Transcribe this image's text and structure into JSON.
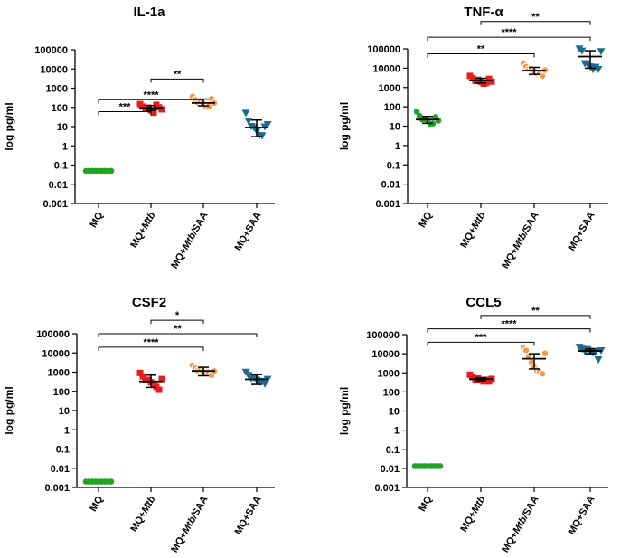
{
  "colors": {
    "MQ": "#23a323",
    "Mtb": "#e81c1c",
    "MtbSAA": "#f79646",
    "SAA": "#1e6a8e",
    "axis": "#000000"
  },
  "chart_data": [
    {
      "type": "scatter",
      "title": "IL-1a",
      "ylabel": "log pg/ml",
      "yscale": "log",
      "ylim": [
        0.001,
        100000
      ],
      "yticks": [
        "0.001",
        "0.01",
        "0.1",
        "1",
        "10",
        "100",
        "1000",
        "10000",
        "100000"
      ],
      "categories": [
        {
          "id": "MQ",
          "pre": "MQ",
          "ital": "",
          "post": ""
        },
        {
          "id": "Mtb",
          "pre": "MQ+",
          "ital": "Mtb",
          "post": ""
        },
        {
          "id": "MtbSAA",
          "pre": "MQ+",
          "ital": "Mtb/",
          "post": "SAA"
        },
        {
          "id": "SAA",
          "pre": "MQ+SAA",
          "ital": "",
          "post": ""
        }
      ],
      "groups": [
        {
          "category": "MQ",
          "marker": "circle",
          "values": [
            0.05,
            0.05,
            0.05,
            0.05,
            0.05,
            0.05,
            0.05,
            0.05,
            0.05
          ],
          "mean": 0.05,
          "low": 0.05,
          "high": 0.05
        },
        {
          "category": "Mtb",
          "marker": "square",
          "values": [
            130,
            110,
            95,
            85,
            70,
            60,
            120,
            100,
            90
          ],
          "mean": 95,
          "low": 70,
          "high": 125
        },
        {
          "category": "MtbSAA",
          "marker": "circle-open",
          "values": [
            320,
            250,
            200,
            170,
            150,
            120,
            100,
            280,
            190
          ],
          "mean": 170,
          "low": 120,
          "high": 270
        },
        {
          "category": "SAA",
          "marker": "triangle-down",
          "values": [
            45,
            20,
            12,
            8,
            6,
            4,
            3,
            10,
            15
          ],
          "mean": 9,
          "low": 3,
          "high": 22
        }
      ],
      "comparisons": [
        {
          "from": "Mtb",
          "to": "MtbSAA",
          "label": "**",
          "y_value": 3000
        },
        {
          "from": "MQ",
          "to": "MtbSAA",
          "label": "****",
          "y_value": 250
        },
        {
          "from": "MQ",
          "to": "Mtb",
          "label": "***",
          "y_value": 60
        }
      ]
    },
    {
      "type": "scatter",
      "title": "TNF-α",
      "ylabel": "log pg/ml",
      "yscale": "log",
      "ylim": [
        0.001,
        100000
      ],
      "yticks": [
        "0.001",
        "0.01",
        "0.1",
        "1",
        "10",
        "100",
        "1000",
        "10000",
        "100000"
      ],
      "categories": [
        {
          "id": "MQ",
          "pre": "MQ",
          "ital": "",
          "post": ""
        },
        {
          "id": "Mtb",
          "pre": "MQ+",
          "ital": "Mtb",
          "post": ""
        },
        {
          "id": "MtbSAA",
          "pre": "MQ+",
          "ital": "Mtb/",
          "post": "SAA"
        },
        {
          "id": "SAA",
          "pre": "MQ+SAA",
          "ital": "",
          "post": ""
        }
      ],
      "groups": [
        {
          "category": "MQ",
          "marker": "circle",
          "values": [
            50,
            35,
            25,
            20,
            18,
            15,
            12,
            30,
            22
          ],
          "mean": 22,
          "low": 14,
          "high": 32
        },
        {
          "category": "Mtb",
          "marker": "square",
          "values": [
            3500,
            3000,
            2500,
            2200,
            2000,
            1800,
            1500,
            2800,
            2300
          ],
          "mean": 2300,
          "low": 1700,
          "high": 3000
        },
        {
          "category": "MtbSAA",
          "marker": "circle-open",
          "values": [
            15000,
            12000,
            10000,
            8000,
            7000,
            6000,
            5000,
            4000,
            9000
          ],
          "mean": 7500,
          "low": 4800,
          "high": 11000
        },
        {
          "category": "SAA",
          "marker": "triangle-down",
          "values": [
            90000,
            80000,
            20000,
            15000,
            12000,
            10000,
            10000,
            9000,
            85000
          ],
          "mean": 40000,
          "low": 10000,
          "high": 80000
        }
      ],
      "comparisons": [
        {
          "from": "Mtb",
          "to": "SAA",
          "label": "**",
          "y_value": 2600000
        },
        {
          "from": "MQ",
          "to": "SAA",
          "label": "****",
          "y_value": 400000
        },
        {
          "from": "MQ",
          "to": "MtbSAA",
          "label": "**",
          "y_value": 55000
        }
      ]
    },
    {
      "type": "scatter",
      "title": "CSF2",
      "ylabel": "log pg/ml",
      "yscale": "log",
      "ylim": [
        0.001,
        100000
      ],
      "yticks": [
        "0.001",
        "0.01",
        "0.1",
        "1",
        "10",
        "100",
        "1000",
        "10000",
        "100000"
      ],
      "categories": [
        {
          "id": "MQ",
          "pre": "MQ",
          "ital": "",
          "post": ""
        },
        {
          "id": "Mtb",
          "pre": "MQ+",
          "ital": "Mtb",
          "post": ""
        },
        {
          "id": "MtbSAA",
          "pre": "MQ+",
          "ital": "Mtb/",
          "post": "SAA"
        },
        {
          "id": "SAA",
          "pre": "MQ+SAA",
          "ital": "",
          "post": ""
        }
      ],
      "groups": [
        {
          "category": "MQ",
          "marker": "circle",
          "values": [
            0.002,
            0.002,
            0.002,
            0.002,
            0.002,
            0.002,
            0.002,
            0.002,
            0.002
          ],
          "mean": 0.002,
          "low": 0.002,
          "high": 0.002
        },
        {
          "category": "Mtb",
          "marker": "square",
          "values": [
            800,
            600,
            450,
            350,
            300,
            250,
            150,
            120,
            500
          ],
          "mean": 330,
          "low": 160,
          "high": 700
        },
        {
          "category": "MtbSAA",
          "marker": "circle-open",
          "values": [
            2000,
            1600,
            1400,
            1200,
            1100,
            1000,
            800,
            700,
            1300
          ],
          "mean": 1150,
          "low": 650,
          "high": 1800
        },
        {
          "category": "SAA",
          "marker": "triangle-down",
          "values": [
            900,
            700,
            550,
            450,
            400,
            350,
            300,
            250,
            500
          ],
          "mean": 420,
          "low": 230,
          "high": 750
        }
      ],
      "comparisons": [
        {
          "from": "Mtb",
          "to": "MtbSAA",
          "label": "*",
          "y_value": 500000
        },
        {
          "from": "MQ",
          "to": "SAA",
          "label": "**",
          "y_value": 100000
        },
        {
          "from": "MQ",
          "to": "MtbSAA",
          "label": "****",
          "y_value": 20000
        }
      ]
    },
    {
      "type": "scatter",
      "title": "CCL5",
      "ylabel": "log pg/ml",
      "yscale": "log",
      "ylim": [
        0.001,
        100000
      ],
      "yticks": [
        "0.001",
        "0.01",
        "0.1",
        "1",
        "10",
        "100",
        "1000",
        "10000",
        "100000"
      ],
      "categories": [
        {
          "id": "MQ",
          "pre": "MQ",
          "ital": "",
          "post": ""
        },
        {
          "id": "Mtb",
          "pre": "MQ+",
          "ital": "Mtb",
          "post": ""
        },
        {
          "id": "MtbSAA",
          "pre": "MQ+",
          "ital": "Mtb/",
          "post": "SAA"
        },
        {
          "id": "SAA",
          "pre": "MQ+SAA",
          "ital": "",
          "post": ""
        }
      ],
      "groups": [
        {
          "category": "MQ",
          "marker": "circle",
          "values": [
            0.013,
            0.013,
            0.013,
            0.013,
            0.013,
            0.013,
            0.013,
            0.013,
            0.013
          ],
          "mean": 0.013,
          "low": 0.013,
          "high": 0.013
        },
        {
          "category": "Mtb",
          "marker": "square",
          "values": [
            700,
            600,
            500,
            450,
            420,
            400,
            380,
            350,
            550
          ],
          "mean": 470,
          "low": 380,
          "high": 560
        },
        {
          "category": "MtbSAA",
          "marker": "circle-open",
          "values": [
            18000,
            15000,
            8000,
            3000,
            2000,
            1500,
            1000,
            900,
            12000
          ],
          "mean": 5500,
          "low": 1600,
          "high": 10000
        },
        {
          "category": "SAA",
          "marker": "triangle-down",
          "values": [
            20000,
            18000,
            16000,
            15000,
            14000,
            13000,
            12000,
            5000,
            17000
          ],
          "mean": 14000,
          "low": 10000,
          "high": 18000
        }
      ],
      "comparisons": [
        {
          "from": "Mtb",
          "to": "SAA",
          "label": "**",
          "y_value": 1000000
        },
        {
          "from": "MQ",
          "to": "SAA",
          "label": "****",
          "y_value": 200000
        },
        {
          "from": "MQ",
          "to": "MtbSAA",
          "label": "***",
          "y_value": 40000
        }
      ]
    }
  ]
}
